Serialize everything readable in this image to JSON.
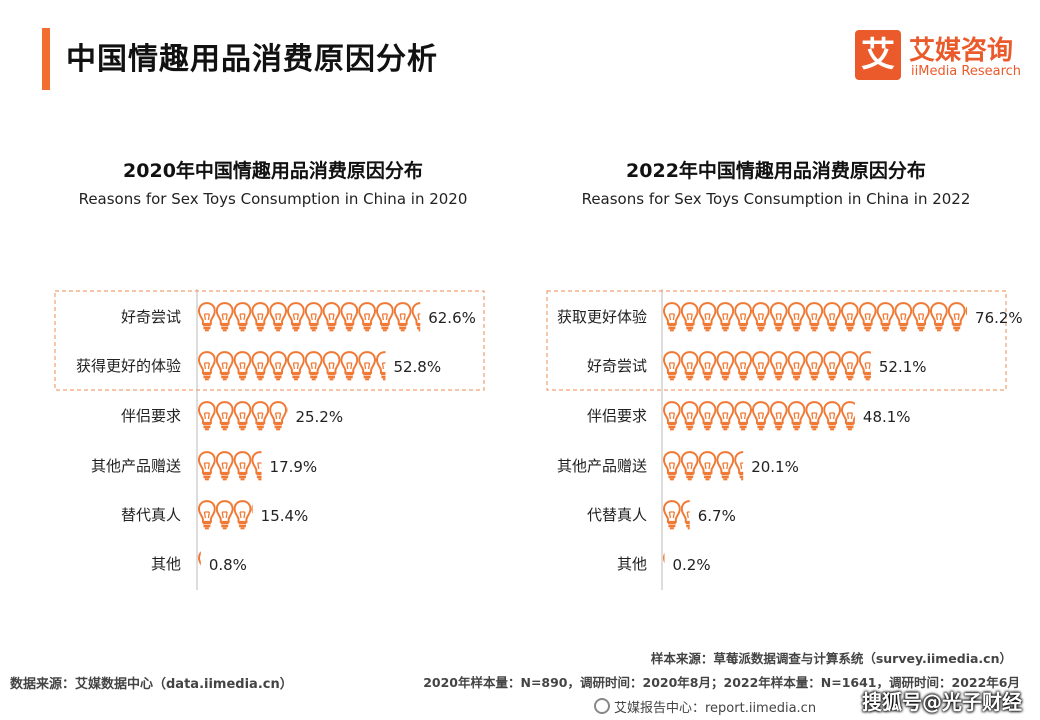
{
  "page": {
    "title": "中国情趣用品消费原因分析"
  },
  "logo": {
    "mark": "艾",
    "cn": "艾媒咨询",
    "en": "iiMedia Research"
  },
  "colors": {
    "accent": "#f26d30",
    "bulb": "#f07a35",
    "axis": "#bbbbbb",
    "highlight": "#f0a070"
  },
  "chart_data": [
    {
      "type": "bar",
      "title": "2020年中国情趣用品消费原因分布",
      "subtitle": "Reasons for Sex Toys Consumption in China in 2020",
      "categories": [
        "好奇尝试",
        "获得更好的体验",
        "伴侣要求",
        "其他产品赠送",
        "替代真人",
        "其他"
      ],
      "values": [
        62.6,
        52.8,
        25.2,
        17.9,
        15.4,
        0.8
      ],
      "labels": [
        "62.6%",
        "52.8%",
        "25.2%",
        "17.9%",
        "15.4%",
        "0.8%"
      ],
      "unit": "%",
      "highlighted": [
        0,
        1
      ]
    },
    {
      "type": "bar",
      "title": "2022年中国情趣用品消费原因分布",
      "subtitle": "Reasons for Sex Toys Consumption in China in 2022",
      "categories": [
        "获取更好体验",
        "好奇尝试",
        "伴侣要求",
        "其他产品赠送",
        "代替真人",
        "其他"
      ],
      "values": [
        76.2,
        52.1,
        48.1,
        20.1,
        6.7,
        0.2
      ],
      "labels": [
        "76.2%",
        "52.1%",
        "48.1%",
        "20.1%",
        "6.7%",
        "0.2%"
      ],
      "unit": "%",
      "highlighted": [
        0,
        1
      ]
    }
  ],
  "footer": {
    "left": "数据来源：艾媒数据中心（data.iimedia.cn）",
    "right1": "样本来源：草莓派数据调查与计算系统（survey.iimedia.cn）",
    "right2": "2020年样本量：N=890，调研时间：2020年8月；2022年样本量：N=1641，调研时间：2022年6月",
    "right3": "艾媒报告中心：report.iimedia.cn",
    "watermark": "搜狐号@光子财经"
  }
}
